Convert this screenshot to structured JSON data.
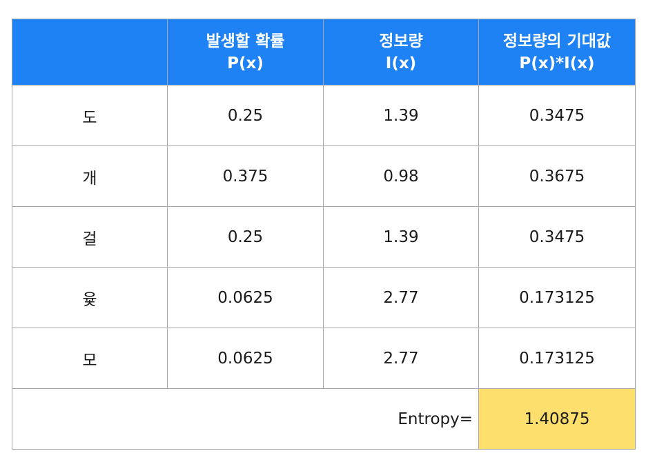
{
  "header": {
    "col0": "",
    "col1_line1": "발생할 확률",
    "col1_line2": "P(x)",
    "col2_line1": "정보량",
    "col2_line2": "I(x)",
    "col3_line1": "정보량의 기대값",
    "col3_line2": "P(x)*I(x)"
  },
  "rows": [
    {
      "label": "도",
      "p": "0.25",
      "i": "1.39",
      "pi": "0.3475"
    },
    {
      "label": "개",
      "p": "0.375",
      "i": "0.98",
      "pi": "0.3675"
    },
    {
      "label": "걸",
      "p": "0.25",
      "i": "1.39",
      "pi": "0.3475"
    },
    {
      "label": "윷",
      "p": "0.0625",
      "i": "2.77",
      "pi": "0.173125"
    },
    {
      "label": "모",
      "p": "0.0625",
      "i": "2.77",
      "pi": "0.173125"
    }
  ],
  "total": {
    "label": "Entropy=",
    "value": "1.40875"
  },
  "colors": {
    "header_bg": "#1e82f5",
    "header_text": "#ffffff",
    "highlight_bg": "#fddf6e",
    "border": "#a6a6a6"
  }
}
